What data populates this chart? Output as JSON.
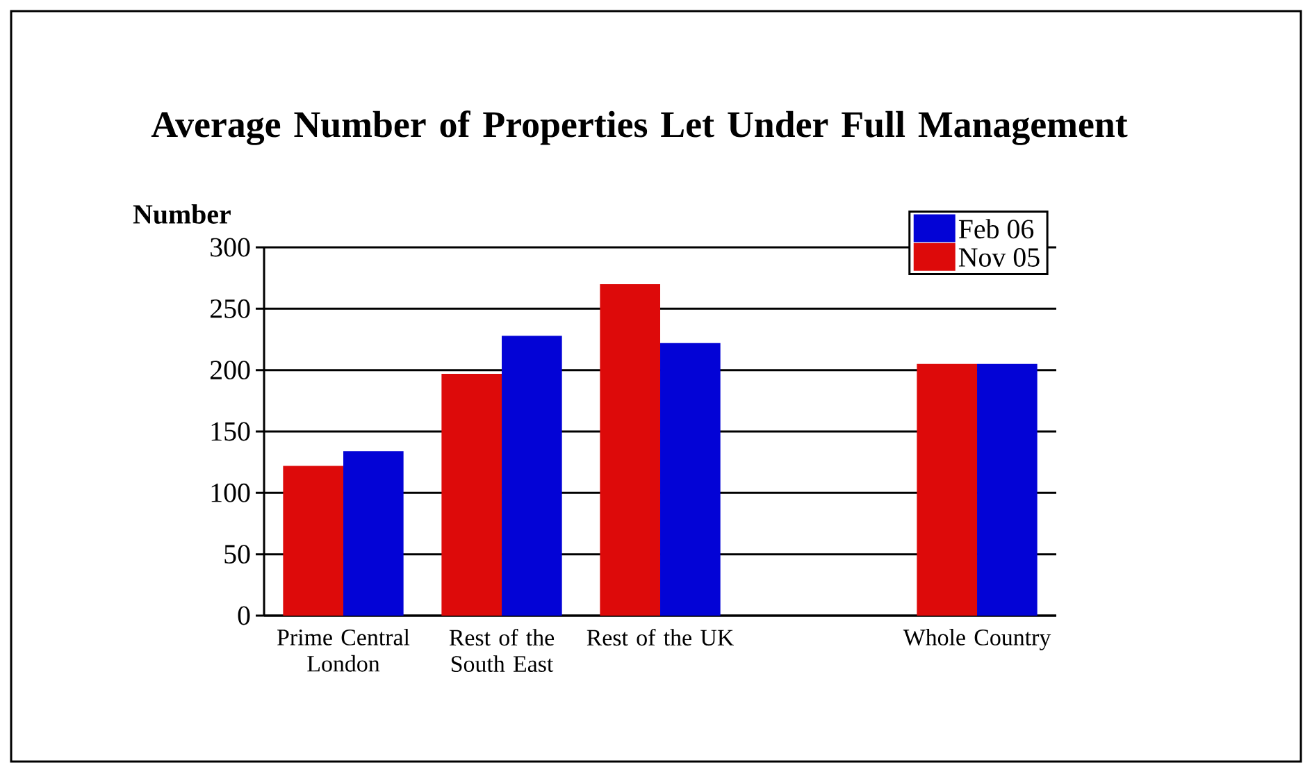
{
  "chart_data": {
    "type": "bar",
    "title": "Average Number of Properties Let Under Full Management",
    "ylabel": "Number",
    "categories": [
      "Prime Central London",
      "Rest of the South East",
      "Rest of the UK",
      null,
      "Whole Country"
    ],
    "series": [
      {
        "name": "Nov 05",
        "color": "#dd0a0a",
        "values": [
          122,
          197,
          270,
          null,
          205
        ]
      },
      {
        "name": "Feb 06",
        "color": "#0303d6",
        "values": [
          134,
          228,
          222,
          null,
          205
        ]
      }
    ],
    "ylim": [
      0,
      300
    ],
    "yticks": [
      0,
      50,
      100,
      150,
      200,
      250,
      300
    ],
    "grid": "y",
    "legend": "top right"
  }
}
